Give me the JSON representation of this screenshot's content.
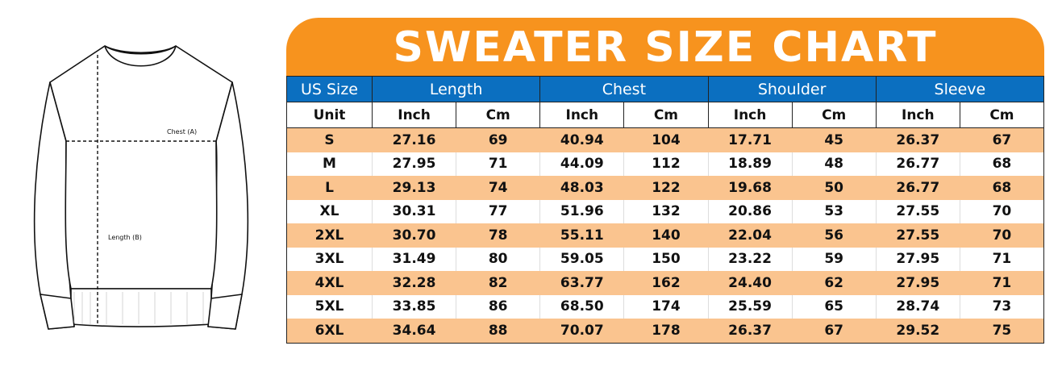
{
  "illustration": {
    "chest_label": "Chest (A)",
    "length_label": "Length (B)"
  },
  "title": "SWEATER SIZE CHART",
  "colors": {
    "banner": "#f7931e",
    "header": "#0b6fc0",
    "stripe": "#fac48f"
  },
  "header": [
    "US Size",
    "Length",
    "Chest",
    "Shoulder",
    "Sleeve"
  ],
  "units": [
    "Unit",
    "Inch",
    "Cm",
    "Inch",
    "Cm",
    "Inch",
    "Cm",
    "Inch",
    "Cm"
  ],
  "rows": [
    [
      "S",
      "27.16",
      "69",
      "40.94",
      "104",
      "17.71",
      "45",
      "26.37",
      "67"
    ],
    [
      "M",
      "27.95",
      "71",
      "44.09",
      "112",
      "18.89",
      "48",
      "26.77",
      "68"
    ],
    [
      "L",
      "29.13",
      "74",
      "48.03",
      "122",
      "19.68",
      "50",
      "26.77",
      "68"
    ],
    [
      "XL",
      "30.31",
      "77",
      "51.96",
      "132",
      "20.86",
      "53",
      "27.55",
      "70"
    ],
    [
      "2XL",
      "30.70",
      "78",
      "55.11",
      "140",
      "22.04",
      "56",
      "27.55",
      "70"
    ],
    [
      "3XL",
      "31.49",
      "80",
      "59.05",
      "150",
      "23.22",
      "59",
      "27.95",
      "71"
    ],
    [
      "4XL",
      "32.28",
      "82",
      "63.77",
      "162",
      "24.40",
      "62",
      "27.95",
      "71"
    ],
    [
      "5XL",
      "33.85",
      "86",
      "68.50",
      "174",
      "25.59",
      "65",
      "28.74",
      "73"
    ],
    [
      "6XL",
      "34.64",
      "88",
      "70.07",
      "178",
      "26.37",
      "67",
      "29.52",
      "75"
    ]
  ]
}
